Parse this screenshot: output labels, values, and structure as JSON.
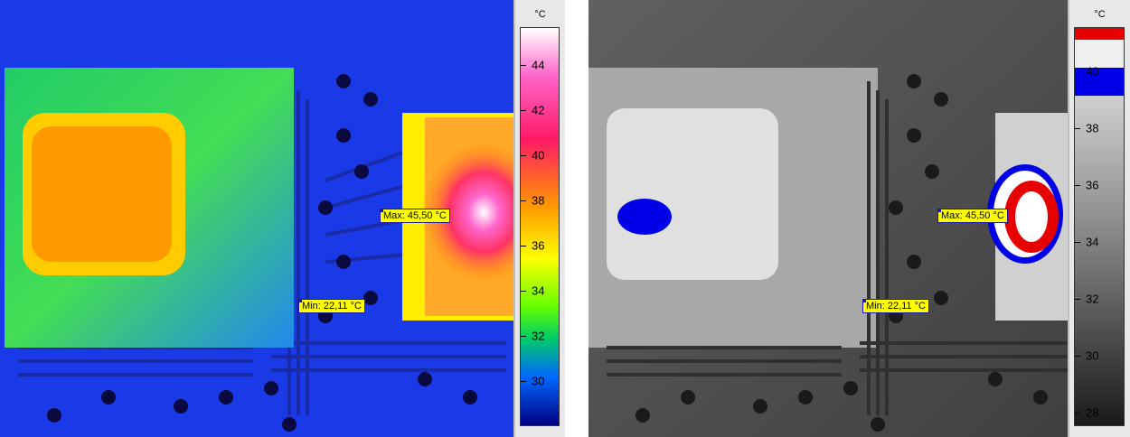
{
  "left": {
    "unit": "°C",
    "scale_ticks": [
      "44",
      "42",
      "40",
      "38",
      "36",
      "34",
      "32",
      "30"
    ],
    "max_label": "Max: 45,50 °C",
    "min_label": "Min: 22,11 °C"
  },
  "right": {
    "unit": "°C",
    "scale_ticks": [
      "40",
      "38",
      "36",
      "34",
      "32",
      "30",
      "28"
    ],
    "max_label": "Max: 45,50 °C",
    "min_label": "Min: 22,11 °C"
  },
  "colors": {
    "marker_bg": "#ffff00",
    "marker_border": "#1a1aa0",
    "alarm_red": "#e60000",
    "alarm_blue": "#0000e6"
  }
}
